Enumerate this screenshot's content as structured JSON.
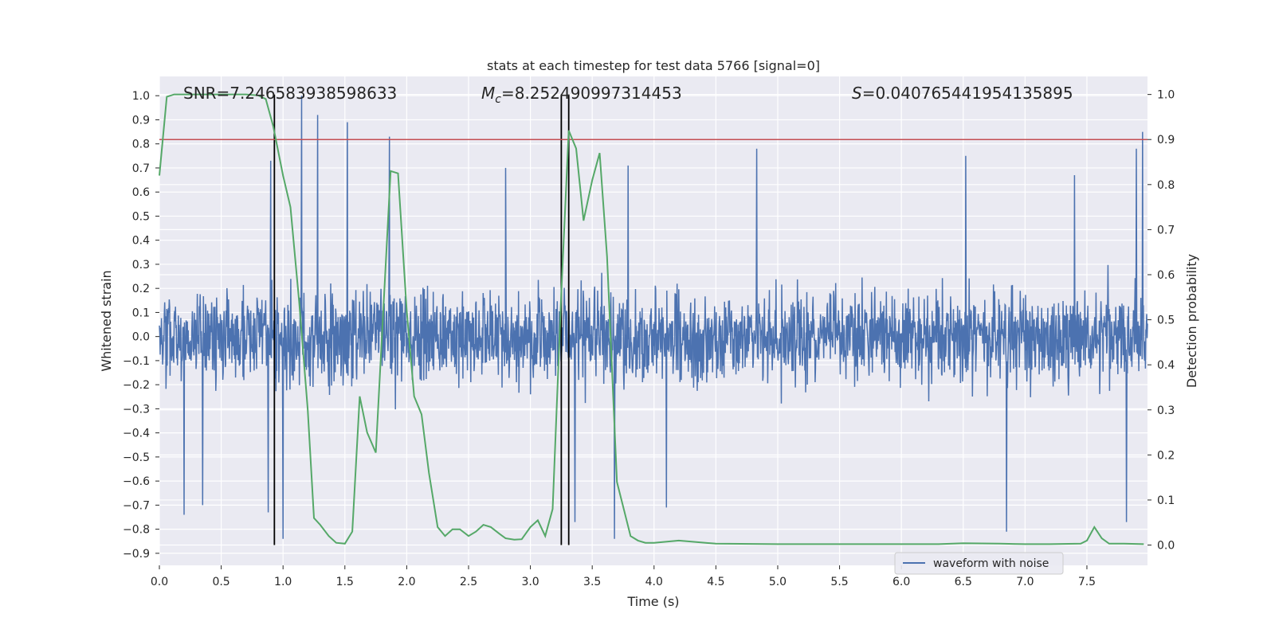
{
  "chart_data": {
    "type": "line",
    "title": "stats at each timestep for test data 5766 [signal=0]",
    "xlabel": "Time (s)",
    "ylabel": "Whitened strain",
    "y2label": "Detection probability",
    "xlim": [
      0.0,
      7.99
    ],
    "ylim": [
      -0.95,
      1.08
    ],
    "y2lim": [
      -0.045,
      1.04
    ],
    "xticks": [
      "0.0",
      "0.5",
      "1.0",
      "1.5",
      "2.0",
      "2.5",
      "3.0",
      "3.5",
      "4.0",
      "4.5",
      "5.0",
      "5.5",
      "6.0",
      "6.5",
      "7.0",
      "7.5"
    ],
    "yticks": [
      "1.0",
      "0.9",
      "0.8",
      "0.7",
      "0.6",
      "0.5",
      "0.4",
      "0.3",
      "0.2",
      "0.1",
      "0.0",
      "−0.1",
      "−0.2",
      "−0.3",
      "−0.4",
      "−0.5",
      "−0.6",
      "−0.7",
      "−0.8",
      "−0.9"
    ],
    "y2ticks": [
      "1.0",
      "0.9",
      "0.8",
      "0.7",
      "0.6",
      "0.5",
      "0.4",
      "0.3",
      "0.2",
      "0.1",
      "0.0"
    ],
    "grid": true,
    "legend_placement": "lower-right",
    "legend": [
      "waveform with noise"
    ],
    "annotations": {
      "snr": "SNR=7.246583938598633",
      "mc_symbol": "M",
      "mc_sub": "c",
      "mc_value": "=8.252490997314453",
      "s_symbol": "S",
      "s_value": "=0.040765441954135895"
    },
    "threshold_probability": 0.9,
    "vertical_markers_s": [
      0.93,
      3.25,
      3.31
    ],
    "waveform_envelope": {
      "typical_amplitude": 0.3,
      "max": 1.0,
      "min": -0.84
    },
    "waveform_spikes": [
      {
        "t": 0.2,
        "y": -0.74
      },
      {
        "t": 0.35,
        "y": -0.7
      },
      {
        "t": 0.9,
        "y": 0.73
      },
      {
        "t": 0.88,
        "y": -0.73
      },
      {
        "t": 1.0,
        "y": -0.84
      },
      {
        "t": 1.15,
        "y": 1.0
      },
      {
        "t": 1.28,
        "y": 0.92
      },
      {
        "t": 1.52,
        "y": 0.89
      },
      {
        "t": 1.86,
        "y": 0.83
      },
      {
        "t": 2.8,
        "y": 0.7
      },
      {
        "t": 3.36,
        "y": -0.77
      },
      {
        "t": 3.68,
        "y": -0.84
      },
      {
        "t": 3.79,
        "y": 0.71
      },
      {
        "t": 4.1,
        "y": -0.71
      },
      {
        "t": 4.83,
        "y": 0.78
      },
      {
        "t": 6.52,
        "y": 0.75
      },
      {
        "t": 6.85,
        "y": -0.81
      },
      {
        "t": 7.4,
        "y": 0.67
      },
      {
        "t": 7.82,
        "y": -0.77
      },
      {
        "t": 7.9,
        "y": 0.78
      },
      {
        "t": 7.95,
        "y": 0.85
      }
    ],
    "series": [
      {
        "name": "",
        "axis": "right",
        "color": "#55a868",
        "x": [
          0.0,
          0.06,
          0.12,
          0.2,
          0.4,
          0.6,
          0.7,
          0.8,
          0.86,
          0.92,
          1.0,
          1.06,
          1.13,
          1.2,
          1.25,
          1.3,
          1.37,
          1.43,
          1.5,
          1.56,
          1.62,
          1.68,
          1.75,
          1.87,
          1.93,
          2.0,
          2.06,
          2.12,
          2.18,
          2.25,
          2.31,
          2.37,
          2.43,
          2.5,
          2.56,
          2.62,
          2.68,
          2.75,
          2.8,
          2.87,
          2.93,
          3.0,
          3.06,
          3.12,
          3.18,
          3.25,
          3.31,
          3.37,
          3.43,
          3.5,
          3.56,
          3.62,
          3.7,
          3.81,
          3.87,
          3.93,
          4.0,
          4.2,
          4.5,
          5.0,
          5.5,
          6.0,
          6.3,
          6.5,
          6.8,
          7.0,
          7.2,
          7.45,
          7.5,
          7.56,
          7.62,
          7.68,
          7.8,
          7.96
        ],
        "values": [
          0.82,
          0.995,
          1.0,
          1.0,
          1.0,
          1.0,
          1.0,
          0.998,
          0.99,
          0.93,
          0.82,
          0.75,
          0.54,
          0.3,
          0.06,
          0.045,
          0.02,
          0.005,
          0.003,
          0.03,
          0.33,
          0.25,
          0.205,
          0.83,
          0.825,
          0.52,
          0.33,
          0.29,
          0.16,
          0.04,
          0.02,
          0.035,
          0.035,
          0.02,
          0.03,
          0.045,
          0.04,
          0.025,
          0.015,
          0.012,
          0.013,
          0.04,
          0.055,
          0.02,
          0.08,
          0.56,
          0.92,
          0.88,
          0.72,
          0.81,
          0.87,
          0.64,
          0.14,
          0.02,
          0.01,
          0.005,
          0.005,
          0.01,
          0.003,
          0.002,
          0.002,
          0.002,
          0.002,
          0.004,
          0.003,
          0.002,
          0.002,
          0.003,
          0.01,
          0.04,
          0.015,
          0.003,
          0.003,
          0.002
        ]
      }
    ]
  }
}
